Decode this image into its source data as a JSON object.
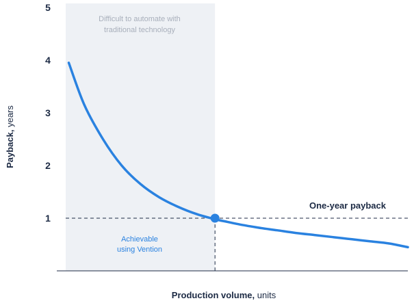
{
  "chart_data": {
    "type": "line",
    "title": "",
    "xlabel_bold": "Production volume,",
    "xlabel_rest": " units",
    "ylabel_bold": "Payback,",
    "ylabel_rest": " years",
    "ylim": [
      0,
      5
    ],
    "yticks": [
      "1",
      "2",
      "3",
      "4",
      "5"
    ],
    "x_range": [
      0,
      5.5
    ],
    "grid": false,
    "series": [
      {
        "color": "#2a82e0",
        "x": [
          0.05,
          0.3,
          0.6,
          0.9,
          1.2,
          1.5,
          1.8,
          2.1,
          2.4,
          2.6,
          2.8,
          3.1,
          3.4,
          3.7,
          4.0,
          4.3,
          4.6,
          4.9,
          5.2,
          5.5
        ],
        "y": [
          3.95,
          3.15,
          2.5,
          2.0,
          1.65,
          1.4,
          1.22,
          1.08,
          0.98,
          0.93,
          0.88,
          0.82,
          0.77,
          0.72,
          0.68,
          0.64,
          0.6,
          0.56,
          0.52,
          0.45
        ]
      }
    ],
    "reference_line": {
      "y": 1,
      "label": "One-year payback",
      "color": "#1c2a44"
    },
    "marker": {
      "x": 2.4,
      "y": 1,
      "color": "#2a82e0"
    },
    "shaded_region": {
      "x_start": 0,
      "x_end": 2.4,
      "color": "#eef1f5",
      "top_label": [
        "Difficult to automate with",
        "traditional technology"
      ],
      "bottom_label": [
        "Achievable",
        "using Vention"
      ]
    }
  }
}
